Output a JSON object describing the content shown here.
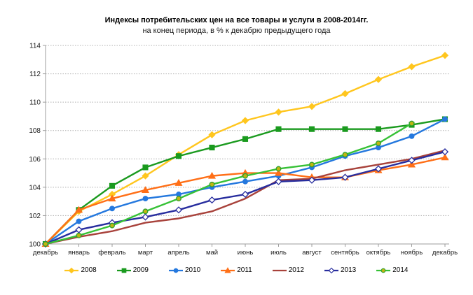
{
  "chart_data": {
    "type": "line",
    "title": "Индексы потребительских цен на все товары и услуги в 2008-2014гг.",
    "subtitle": "на конец периода, в % к декабрю предыдущего года",
    "categories": [
      "декабрь",
      "январь",
      "февраль",
      "март",
      "апрель",
      "май",
      "июнь",
      "июль",
      "август",
      "сентябрь",
      "октябрь",
      "ноябрь",
      "декабрь"
    ],
    "ylim": [
      100,
      114
    ],
    "yticks": [
      100,
      102,
      104,
      106,
      108,
      110,
      112,
      114
    ],
    "grid": "horizontal-dotted",
    "legend_position": "bottom",
    "grid_color": "#b0b0b0",
    "axis_color": "#9c9c9c",
    "series": [
      {
        "name": "2008",
        "color": "#FFC61E",
        "marker": "diamond",
        "marker_fill": "#FFC61E",
        "marker_stroke": "#FFC61E",
        "values": [
          100,
          102.3,
          103.5,
          104.8,
          106.3,
          107.7,
          108.7,
          109.3,
          109.7,
          110.6,
          111.6,
          112.5,
          113.3
        ]
      },
      {
        "name": "2009",
        "color": "#1A9A1E",
        "marker": "square",
        "marker_fill": "#1A9A1E",
        "marker_stroke": "#1A9A1E",
        "values": [
          100,
          102.4,
          104.1,
          105.4,
          106.2,
          106.8,
          107.4,
          108.1,
          108.1,
          108.1,
          108.1,
          108.4,
          108.8
        ]
      },
      {
        "name": "2010",
        "color": "#2478DE",
        "marker": "circle",
        "marker_fill": "#2478DE",
        "marker_stroke": "#2478DE",
        "values": [
          100,
          101.6,
          102.5,
          103.2,
          103.5,
          104.0,
          104.4,
          104.8,
          105.4,
          106.2,
          106.8,
          107.6,
          108.8
        ]
      },
      {
        "name": "2011",
        "color": "#FF6F17",
        "marker": "triangle",
        "marker_fill": "#FF6F17",
        "marker_stroke": "#FF6F17",
        "values": [
          100,
          102.4,
          103.2,
          103.8,
          104.3,
          104.8,
          105.0,
          105.0,
          104.7,
          104.7,
          105.2,
          105.6,
          106.1
        ]
      },
      {
        "name": "2012",
        "color": "#A8423B",
        "marker": "none",
        "marker_fill": "#A8423B",
        "marker_stroke": "#A8423B",
        "values": [
          100,
          100.5,
          100.9,
          101.5,
          101.8,
          102.3,
          103.2,
          104.5,
          104.6,
          105.2,
          105.6,
          106.0,
          106.6
        ]
      },
      {
        "name": "2013",
        "color": "#272D9E",
        "marker": "diamond",
        "marker_fill": "#FFFFFF",
        "marker_stroke": "#272D9E",
        "values": [
          100,
          101.0,
          101.5,
          101.9,
          102.4,
          103.1,
          103.5,
          104.4,
          104.5,
          104.7,
          105.3,
          105.9,
          106.5
        ]
      },
      {
        "name": "2014",
        "color": "#36C136",
        "marker": "circle",
        "marker_fill": "#C0B512",
        "marker_stroke": "#2FA12F",
        "values": [
          100,
          100.6,
          101.3,
          102.3,
          103.2,
          104.2,
          104.8,
          105.3,
          105.6,
          106.3,
          107.1,
          108.5
        ]
      }
    ]
  }
}
